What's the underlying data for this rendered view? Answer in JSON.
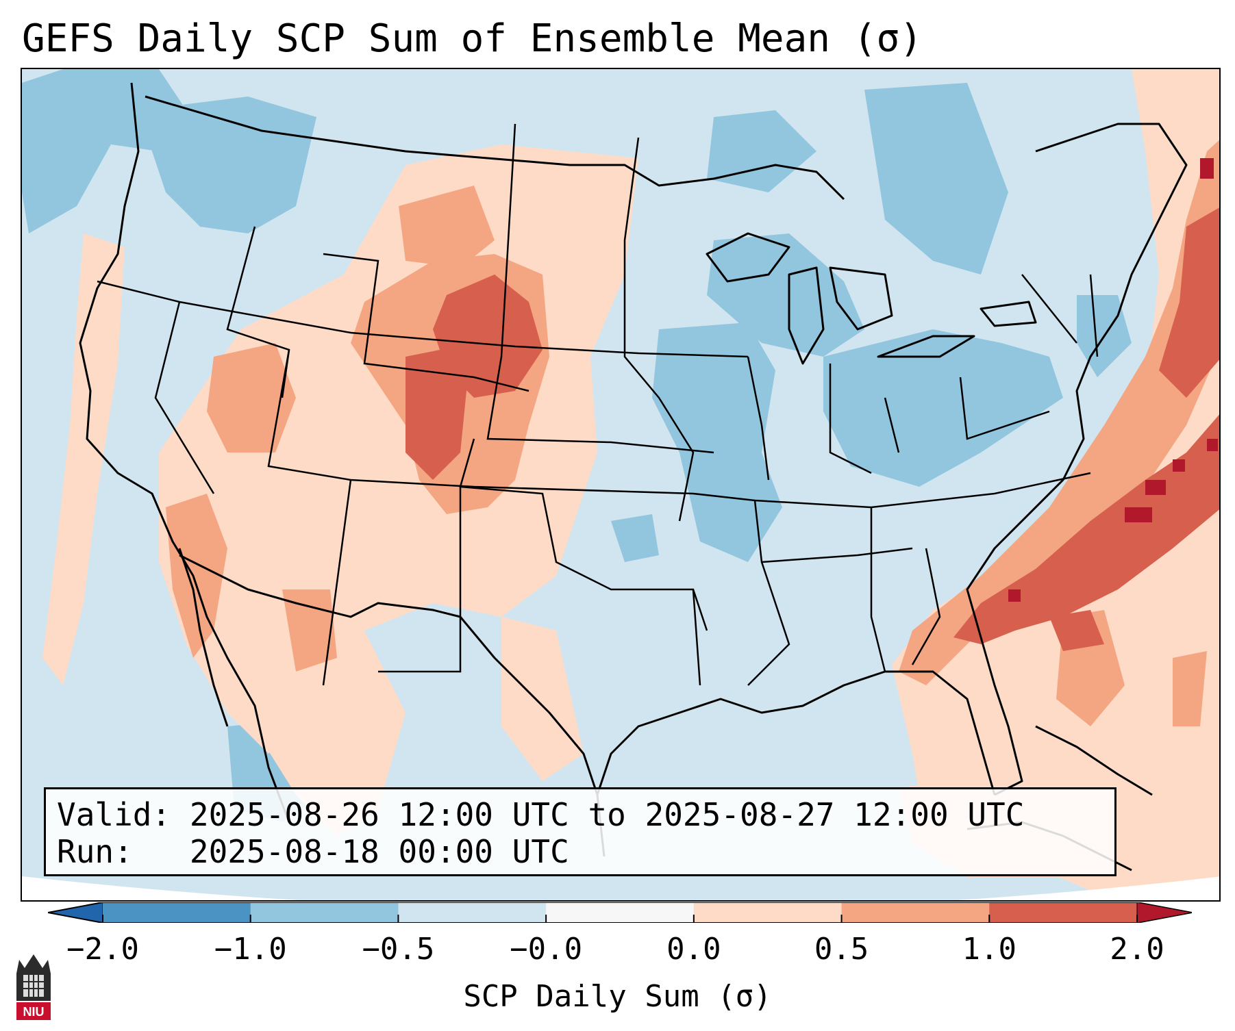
{
  "title": "GEFS Daily SCP Sum of Ensemble Mean (σ)",
  "info": {
    "valid_label": "Valid:",
    "valid_value": "2025-08-26 12:00 UTC to 2025-08-27 12:00 UTC",
    "run_label": "Run:",
    "run_value": "2025-08-18 00:00 UTC"
  },
  "colorbar": {
    "label": "SCP Daily Sum (σ)",
    "tick_labels": [
      "−2.0",
      "−1.0",
      "−0.5",
      "−0.0",
      "0.0",
      "0.5",
      "1.0",
      "2.0"
    ],
    "bin_colors": [
      "#4b93c3",
      "#92c5de",
      "#d1e5f0",
      "#f7f7f7",
      "#fddbc7",
      "#f4a582",
      "#d6604d"
    ],
    "under_color": "#2166ac",
    "over_color": "#b2182b",
    "frame_color": "#000000"
  },
  "map": {
    "projection": "Lambert conformal (CONUS)",
    "field": "SCP daily sum standardized anomaly",
    "coast_color": "#000000",
    "background_color": "#d1e5f0"
  },
  "logo": {
    "text": "NIU",
    "name": "niu-logo-icon"
  }
}
